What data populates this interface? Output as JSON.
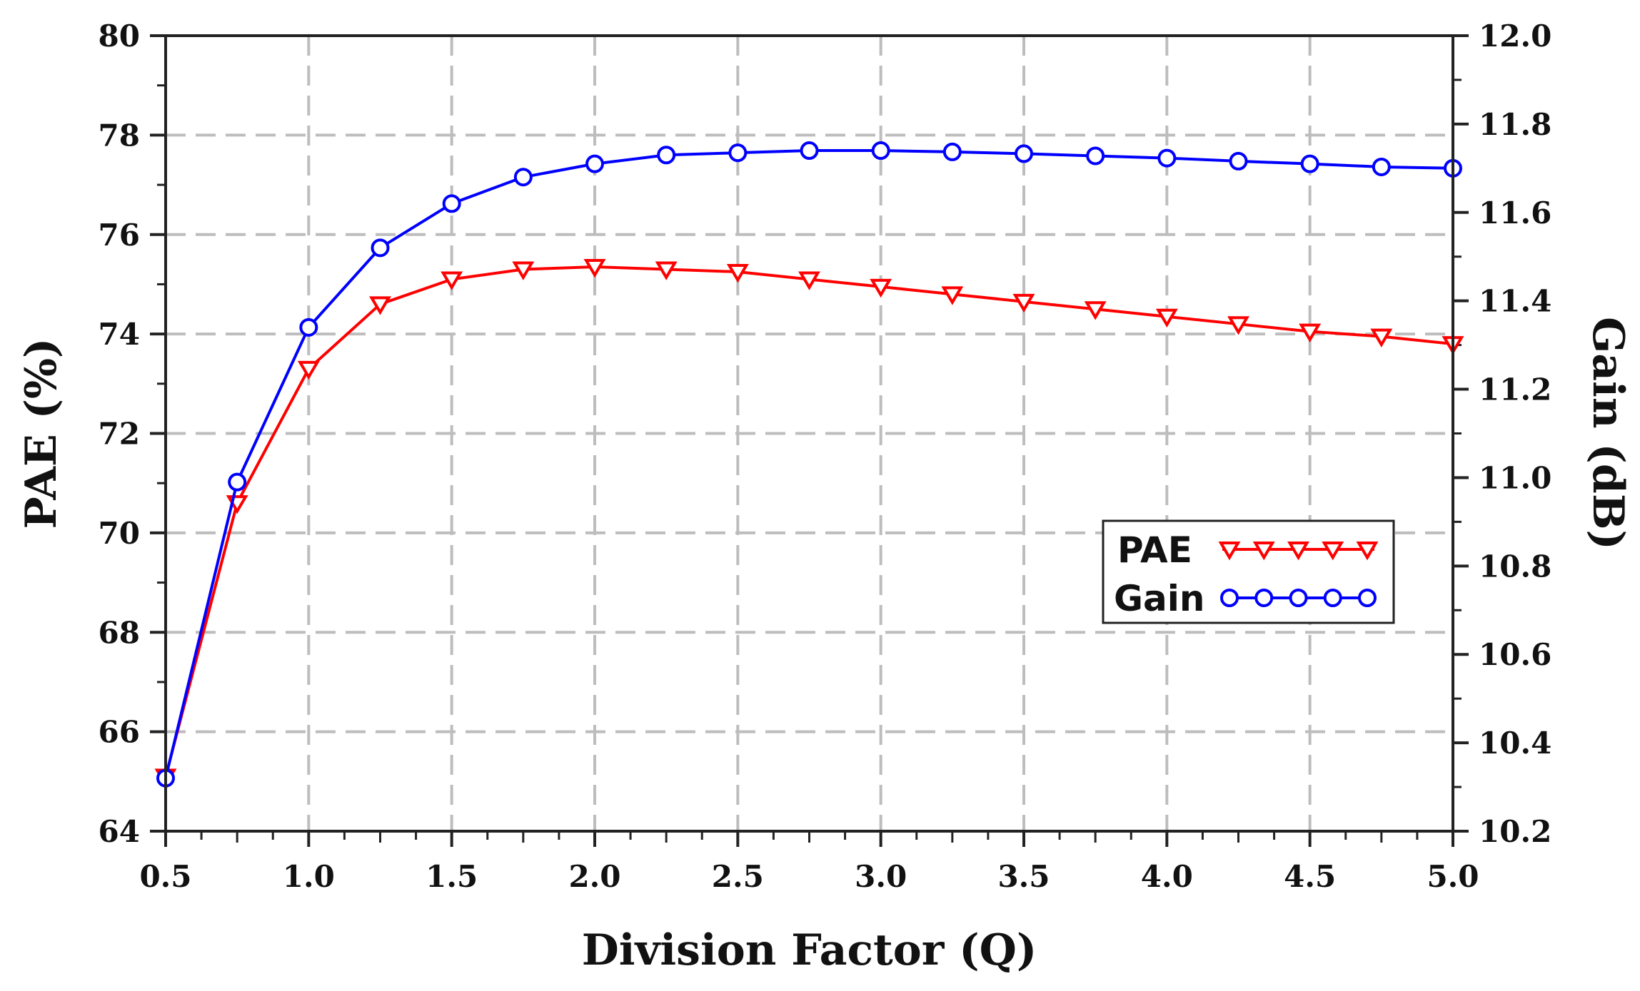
{
  "chart_data": {
    "type": "line",
    "title": "",
    "xlabel": "Division Factor (Q)",
    "ylabel_left": "PAE (%)",
    "ylabel_right": "Gain (dB)",
    "xlim": [
      0.5,
      5.0
    ],
    "ylim_left": [
      64,
      80
    ],
    "ylim_right": [
      10.2,
      12.0
    ],
    "x_ticks": [
      "0.5",
      "1.0",
      "1.5",
      "2.0",
      "2.5",
      "3.0",
      "3.5",
      "4.0",
      "4.5",
      "5.0"
    ],
    "y_left_ticks": [
      "64",
      "66",
      "68",
      "70",
      "72",
      "74",
      "76",
      "78",
      "80"
    ],
    "y_right_ticks": [
      "10.2",
      "10.4",
      "10.6",
      "10.8",
      "11.0",
      "11.2",
      "11.4",
      "11.6",
      "11.8",
      "12.0"
    ],
    "grid": true,
    "legend_position": "center-right",
    "x": [
      0.5,
      0.75,
      1.0,
      1.25,
      1.5,
      1.75,
      2.0,
      2.25,
      2.5,
      2.75,
      3.0,
      3.25,
      3.5,
      3.75,
      4.0,
      4.25,
      4.5,
      4.75,
      5.0
    ],
    "series": [
      {
        "name": "PAE",
        "axis": "left",
        "color": "#ff0000",
        "marker": "triangle-down",
        "values": [
          65.1,
          70.6,
          73.3,
          74.6,
          75.1,
          75.3,
          75.35,
          75.3,
          75.25,
          75.1,
          74.95,
          74.8,
          74.65,
          74.5,
          74.35,
          74.2,
          74.05,
          73.95,
          73.8
        ]
      },
      {
        "name": "Gain",
        "axis": "right",
        "color": "#0000ff",
        "marker": "circle",
        "values": [
          10.32,
          10.99,
          11.34,
          11.52,
          11.62,
          11.68,
          11.71,
          11.73,
          11.735,
          11.74,
          11.74,
          11.737,
          11.733,
          11.728,
          11.723,
          11.716,
          11.71,
          11.703,
          11.7
        ]
      }
    ]
  }
}
